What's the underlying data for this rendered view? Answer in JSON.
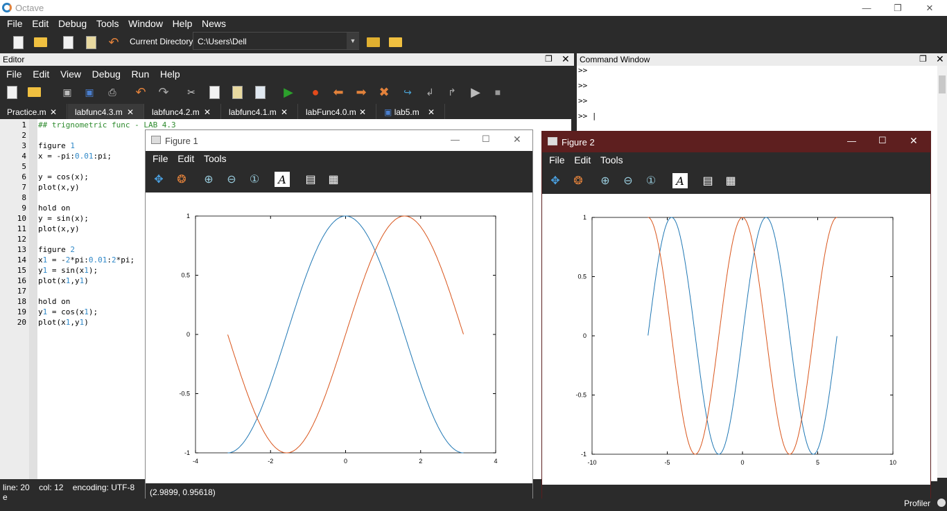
{
  "app": {
    "title": "Octave"
  },
  "menu": [
    "File",
    "Edit",
    "Debug",
    "Tools",
    "Window",
    "Help",
    "News"
  ],
  "curdir": {
    "label": "Current Directory:",
    "value": "C:\\Users\\Dell"
  },
  "editor": {
    "title": "Editor",
    "menu": [
      "File",
      "Edit",
      "View",
      "Debug",
      "Run",
      "Help"
    ],
    "tabs": [
      "Practice.m",
      "labfunc4.3.m",
      "labfunc4.2.m",
      "labfunc4.1.m",
      "labFunc4.0.m",
      "lab5.m"
    ],
    "lines": [
      "## trignometric func - LAB 4.3",
      "",
      "figure 1",
      "x = -pi:0.01:pi;",
      "",
      "y = cos(x);",
      "plot(x,y)",
      "",
      "hold on",
      "y = sin(x);",
      "plot(x,y)",
      "",
      "figure 2",
      "x1 = -2*pi:0.01:2*pi;",
      "y1 = sin(x1);",
      "plot(x1,y1)",
      "",
      "hold on",
      "y1 = cos(x1);",
      "plot(x1,y1)"
    ],
    "status": {
      "line": "line:",
      "line_val": "20",
      "col": "col:",
      "col_val": "12",
      "encoding": "encoding:",
      "enc_val": "UTF-8",
      "eol": "e"
    }
  },
  "cmd": {
    "title": "Command Window",
    "prompts": [
      ">>",
      ">>",
      ">>",
      ">> |"
    ]
  },
  "fig1": {
    "title": "Figure 1",
    "menu": [
      "File",
      "Edit",
      "Tools"
    ],
    "status": "(2.9899, 0.95618)"
  },
  "fig2": {
    "title": "Figure 2",
    "menu": [
      "File",
      "Edit",
      "Tools"
    ]
  },
  "profiler": "Profiler",
  "colors": {
    "blue": "#1f77b4",
    "orange": "#d9541a"
  },
  "chart_data": [
    {
      "type": "line",
      "xlim": [
        -4,
        4
      ],
      "ylim": [
        -1,
        1
      ],
      "xticks": [
        "-4",
        "-2",
        "0",
        "2",
        "4"
      ],
      "yticks": [
        "1",
        "0.5",
        "0",
        "-0.5",
        "-1"
      ],
      "series": [
        {
          "color": "#1f77b4",
          "fn": "cos",
          "x": [
            -3.14,
            3.14
          ]
        },
        {
          "color": "#d9541a",
          "fn": "sin",
          "x": [
            -3.14,
            3.14
          ]
        }
      ]
    },
    {
      "type": "line",
      "xlim": [
        -10,
        10
      ],
      "ylim": [
        -1,
        1
      ],
      "xticks": [
        "-10",
        "-5",
        "0",
        "5",
        "10"
      ],
      "yticks": [
        "1",
        "0.5",
        "0",
        "-0.5",
        "-1"
      ],
      "series": [
        {
          "color": "#1f77b4",
          "fn": "sin",
          "x": [
            -6.28,
            6.28
          ]
        },
        {
          "color": "#d9541a",
          "fn": "cos",
          "x": [
            -6.28,
            6.28
          ]
        }
      ]
    }
  ]
}
